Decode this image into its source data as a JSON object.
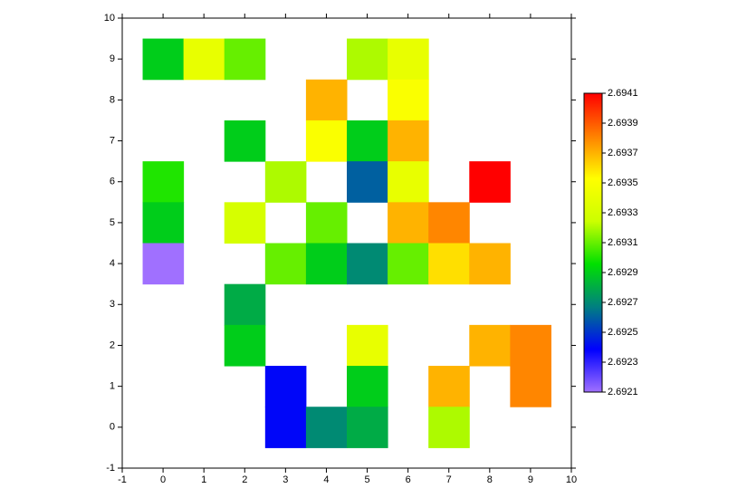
{
  "chart_data": {
    "type": "heatmap",
    "x": [
      0,
      1,
      2,
      5,
      6,
      4,
      6,
      2,
      4,
      5,
      6,
      0,
      3,
      5,
      6,
      8,
      0,
      2,
      4,
      6,
      7,
      0,
      3,
      4,
      5,
      6,
      7,
      8,
      2,
      2,
      5,
      8,
      9,
      3,
      5,
      7,
      9,
      3,
      4,
      5,
      7
    ],
    "y": [
      9,
      9,
      9,
      9,
      9,
      8,
      8,
      7,
      7,
      7,
      7,
      6,
      6,
      6,
      6,
      6,
      5,
      5,
      5,
      5,
      5,
      4,
      4,
      4,
      4,
      4,
      4,
      4,
      3,
      2,
      2,
      2,
      2,
      1,
      1,
      1,
      1,
      0,
      0,
      0,
      0
    ],
    "values": [
      2.6929,
      2.6934,
      2.6931,
      2.6932,
      2.6934,
      2.6937,
      2.6935,
      2.6929,
      2.6935,
      2.6929,
      2.6937,
      2.693,
      2.6932,
      2.6926,
      2.6934,
      2.6941,
      2.6929,
      2.6933,
      2.6931,
      2.6937,
      2.6938,
      2.6921,
      2.6931,
      2.6929,
      2.6927,
      2.6931,
      2.6936,
      2.6937,
      2.6928,
      2.6929,
      2.6934,
      2.6937,
      2.6938,
      2.6924,
      2.6929,
      2.6937,
      2.6938,
      2.6924,
      2.6927,
      2.6928,
      2.6932
    ],
    "xlim": [
      -1,
      10
    ],
    "ylim": [
      -1,
      10
    ],
    "xticks": [
      -1,
      0,
      1,
      2,
      3,
      4,
      5,
      6,
      7,
      8,
      9,
      10
    ],
    "yticks": [
      -1,
      0,
      1,
      2,
      3,
      4,
      5,
      6,
      7,
      8,
      9,
      10
    ],
    "clim": [
      2.6921,
      2.6941
    ],
    "cticks": [
      2.6921,
      2.6923,
      2.6925,
      2.6927,
      2.6929,
      2.6931,
      2.6933,
      2.6935,
      2.6937,
      2.6939,
      2.6941
    ],
    "colormap": [
      "#a070ff",
      "#0000ff",
      "#008080",
      "#00e000",
      "#ccff00",
      "#ffff00",
      "#ff8000",
      "#ff0000"
    ]
  }
}
